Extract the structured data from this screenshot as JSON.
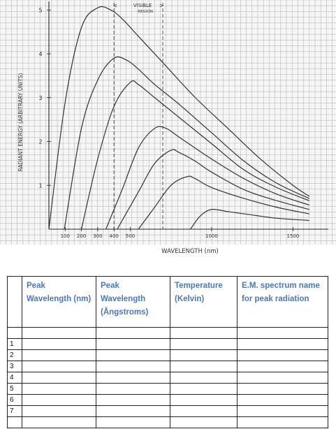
{
  "chart_data": {
    "type": "line",
    "title": "",
    "xlabel": "WAVELENGTH (nm)",
    "ylabel": "RADIANT ENERGY (ARBITRARY UNITS)",
    "xlim": [
      0,
      1700
    ],
    "ylim": [
      0,
      5.1
    ],
    "x_ticks": [
      "100",
      "200",
      "300",
      "400",
      "500",
      "1000",
      "1500"
    ],
    "x_tick_values": [
      100,
      200,
      300,
      400,
      500,
      1000,
      1500
    ],
    "y_ticks": [
      "1",
      "2",
      "3",
      "4",
      "5"
    ],
    "y_tick_values": [
      1,
      2,
      3,
      4,
      5
    ],
    "grid": true,
    "visible_region": {
      "label": "VISIBLE",
      "sublabel": "REGION",
      "start": 400,
      "end": 700
    },
    "series": [
      {
        "x": [
          0,
          100,
          200,
          300,
          380,
          450,
          550,
          700,
          900,
          1100,
          1300,
          1500,
          1600
        ],
        "values": [
          0,
          2.9,
          4.6,
          5.05,
          5.0,
          4.8,
          4.4,
          3.8,
          3.0,
          2.3,
          1.6,
          1.0,
          0.75
        ]
      },
      {
        "x": [
          95,
          200,
          300,
          400,
          480,
          550,
          650,
          800,
          1000,
          1200,
          1400,
          1600
        ],
        "values": [
          0,
          2.3,
          3.4,
          3.9,
          3.85,
          3.65,
          3.3,
          2.85,
          2.2,
          1.55,
          1.05,
          0.7
        ]
      },
      {
        "x": [
          200,
          300,
          400,
          500,
          550,
          650,
          800,
          1000,
          1200,
          1400,
          1600
        ],
        "values": [
          0,
          1.6,
          2.8,
          3.35,
          3.3,
          3.0,
          2.55,
          1.95,
          1.35,
          0.95,
          0.65
        ]
      },
      {
        "x": [
          350,
          450,
          550,
          650,
          720,
          800,
          1000,
          1200,
          1400,
          1600
        ],
        "values": [
          0,
          0.9,
          1.85,
          2.3,
          2.3,
          2.1,
          1.6,
          1.15,
          0.8,
          0.55
        ]
      },
      {
        "x": [
          420,
          550,
          650,
          750,
          800,
          900,
          1000,
          1200,
          1400,
          1600
        ],
        "values": [
          0,
          0.85,
          1.5,
          1.8,
          1.75,
          1.55,
          1.3,
          0.9,
          0.65,
          0.45
        ]
      },
      {
        "x": [
          550,
          650,
          750,
          850,
          900,
          1000,
          1200,
          1400,
          1600
        ],
        "values": [
          0,
          0.5,
          1.0,
          1.2,
          1.15,
          0.95,
          0.7,
          0.5,
          0.35
        ]
      },
      {
        "x": [
          870,
          930,
          1000,
          1100,
          1200,
          1400,
          1600
        ],
        "values": [
          0,
          0.3,
          0.45,
          0.4,
          0.35,
          0.25,
          0.2
        ]
      }
    ]
  },
  "table": {
    "headers": [
      "",
      "Peak Wavelength (nm)",
      "Peak Wavelength (Ångstroms)",
      "Temperature (Kelvin)",
      "E.M. spectrum name for peak radiation"
    ],
    "rows": [
      "1",
      "2",
      "3",
      "4",
      "5",
      "6",
      "7"
    ]
  }
}
